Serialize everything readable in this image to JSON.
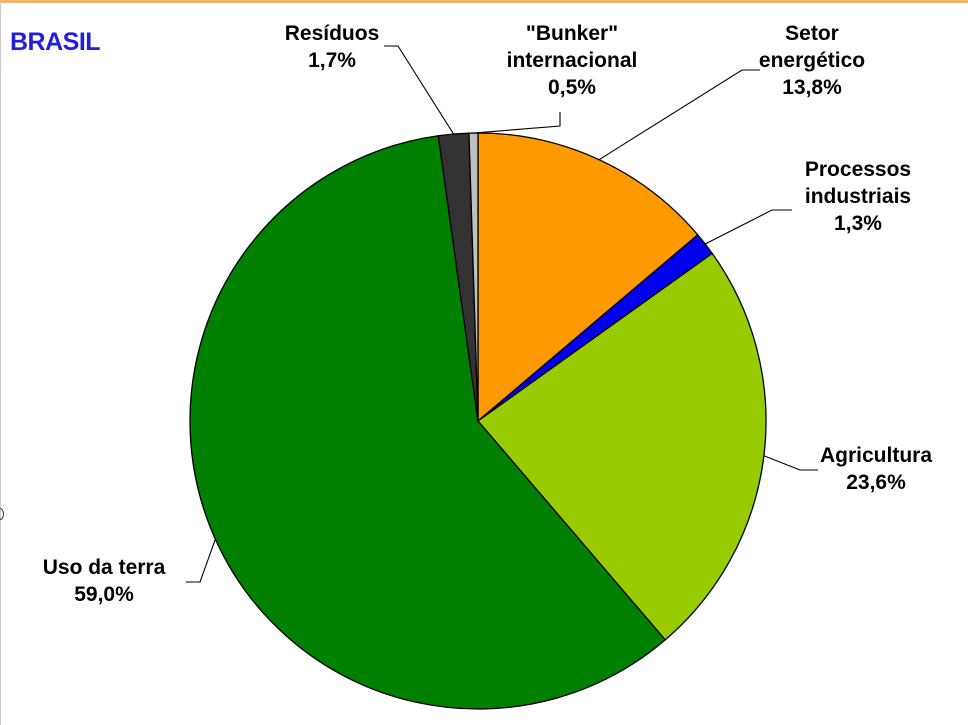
{
  "chart_data": {
    "type": "pie",
    "title": "BRASIL",
    "start_angle_deg": 0,
    "direction": "clockwise",
    "slices": [
      {
        "label_lines": [
          "Setor",
          "energético"
        ],
        "value_label": "13,8%",
        "value": 13.8,
        "color": "#ff9900"
      },
      {
        "label_lines": [
          "Processos",
          "industriais"
        ],
        "value_label": "1,3%",
        "value": 1.3,
        "color": "#0000ee"
      },
      {
        "label_lines": [
          "Agricultura"
        ],
        "value_label": "23,6%",
        "value": 23.6,
        "color": "#99cc00"
      },
      {
        "label_lines": [
          "Uso da terra"
        ],
        "value_label": "59,0%",
        "value": 59.0,
        "color": "#008000"
      },
      {
        "label_lines": [
          "Resíduos"
        ],
        "value_label": "1,7%",
        "value": 1.7,
        "color": "#333333"
      },
      {
        "label_lines": [
          "\"Bunker\"",
          "internacional"
        ],
        "value_label": "0,5%",
        "value": 0.5,
        "color": "#c0c0c0"
      }
    ]
  }
}
